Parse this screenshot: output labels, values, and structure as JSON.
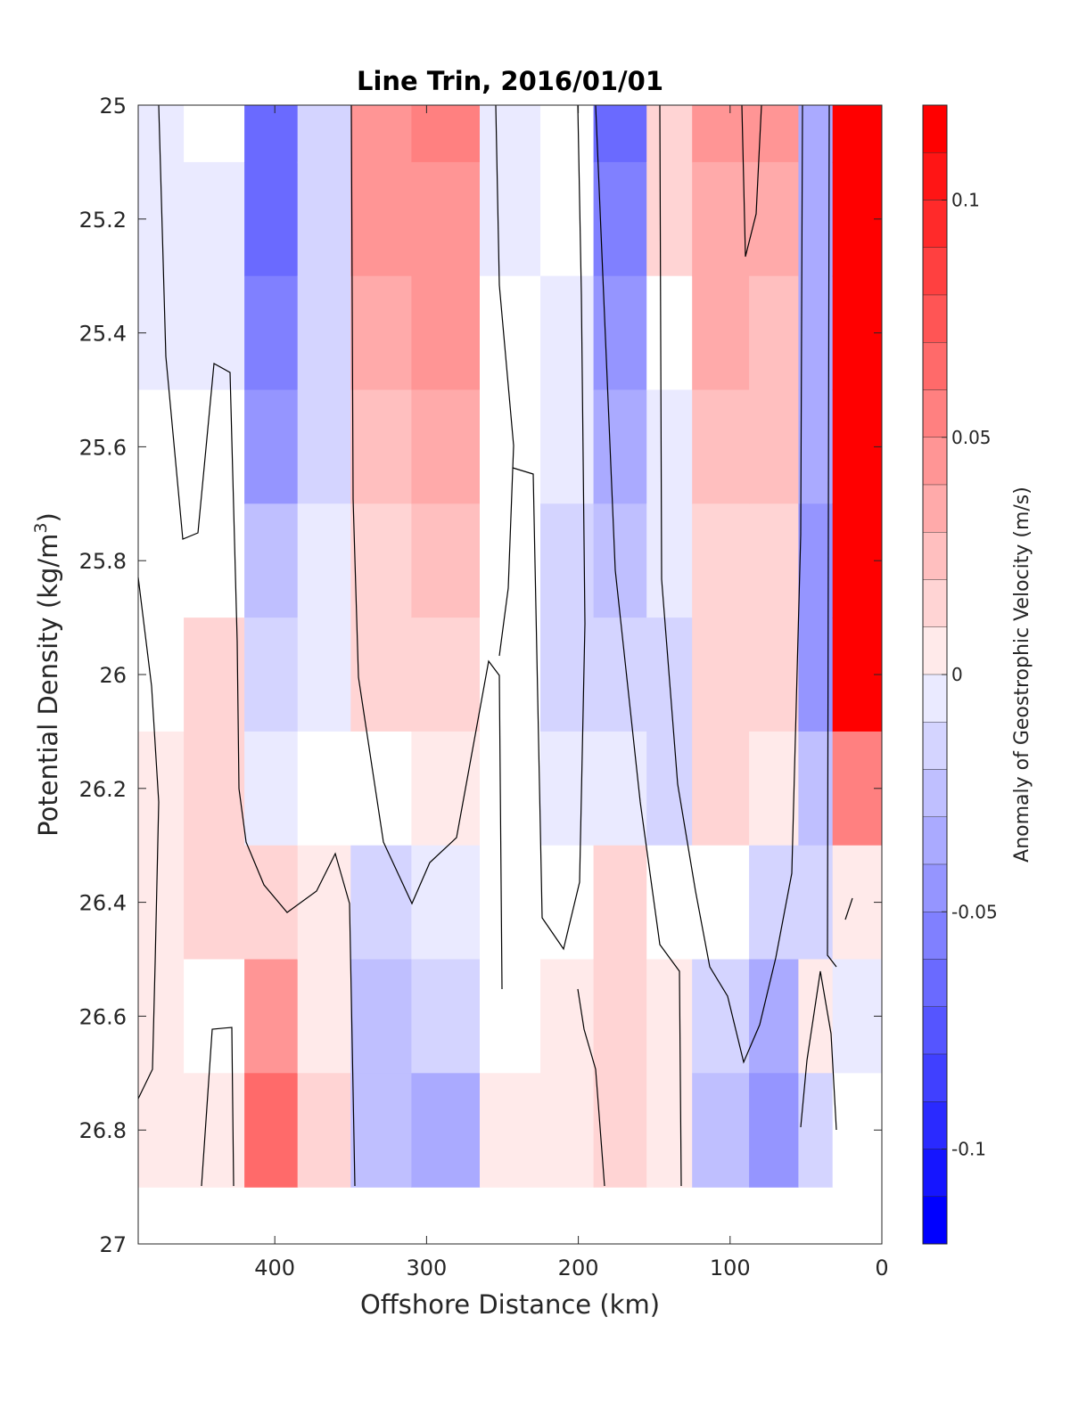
{
  "chart_data": {
    "type": "heatmap",
    "title": "Line Trin, 2016/01/01",
    "xlabel": "Offshore Distance (km)",
    "ylabel_main": "Potential Density (kg/m",
    "ylabel_sup": "3",
    "ylabel_close": ")",
    "colorbar_label": "Anomaly of Geostrophic Velocity (m/s)",
    "x_range": [
      490,
      0
    ],
    "x_reversed": true,
    "y_range": [
      25,
      27
    ],
    "y_reversed": true,
    "x_ticks": [
      400,
      300,
      200,
      100,
      0
    ],
    "x_tick_labels": [
      "400",
      "300",
      "200",
      "100",
      "0"
    ],
    "y_ticks": [
      25,
      25.2,
      25.4,
      25.6,
      25.8,
      26,
      26.2,
      26.4,
      26.6,
      26.8,
      27
    ],
    "y_tick_labels": [
      "25",
      "25.2",
      "25.4",
      "25.6",
      "25.8",
      "26",
      "26.2",
      "26.4",
      "26.6",
      "26.8",
      "27"
    ],
    "color_range": [
      -0.12,
      0.12
    ],
    "color_step": 0.01,
    "colorbar_ticks": [
      0.1,
      0.05,
      0,
      -0.05,
      -0.1
    ],
    "colorbar_tick_labels": [
      "0.1",
      "0.05",
      "0",
      "-0.05",
      "-0.1"
    ],
    "colormap": "blue-white-red",
    "colors": {
      "max": "#ff0000",
      "zero": "#ffffff",
      "min": "#0000ff",
      "contour": "#000000"
    },
    "data_y_extent": [
      25,
      26.9
    ],
    "zero_contour": "shown as thin black lines",
    "grid": false,
    "columns": [
      {
        "x": 480,
        "values": [
          -0.01,
          -0.01,
          -0.01,
          0,
          0,
          0,
          0.01,
          0.01,
          0.01,
          0.01
        ]
      },
      {
        "x": 440,
        "values": [
          0,
          -0.01,
          -0.01,
          0,
          0,
          0.02,
          0.02,
          0.02,
          0,
          0.01
        ]
      },
      {
        "x": 400,
        "values": [
          -0.07,
          -0.07,
          -0.06,
          -0.05,
          -0.03,
          -0.02,
          -0.01,
          0.02,
          0.05,
          0.07
        ]
      },
      {
        "x": 370,
        "values": [
          -0.02,
          -0.02,
          -0.02,
          -0.02,
          -0.01,
          -0.01,
          0,
          0.01,
          0.01,
          0.02
        ]
      },
      {
        "x": 330,
        "values": [
          0.05,
          0.05,
          0.04,
          0.03,
          0.02,
          0.02,
          0,
          -0.02,
          -0.03,
          -0.03
        ]
      },
      {
        "x": 290,
        "values": [
          0.06,
          0.05,
          0.05,
          0.04,
          0.03,
          0.02,
          0.01,
          -0.01,
          -0.02,
          -0.04
        ]
      },
      {
        "x": 240,
        "values": [
          -0.01,
          -0.01,
          0,
          0,
          0,
          0,
          0,
          0,
          0,
          0.01
        ]
      },
      {
        "x": 210,
        "values": [
          0,
          0,
          -0.01,
          -0.01,
          -0.02,
          -0.02,
          -0.01,
          0,
          0.01,
          0.01
        ]
      },
      {
        "x": 170,
        "values": [
          -0.07,
          -0.06,
          -0.05,
          -0.04,
          -0.03,
          -0.02,
          -0.01,
          0.02,
          0.02,
          0.02
        ]
      },
      {
        "x": 140,
        "values": [
          0.02,
          0.02,
          0,
          -0.01,
          -0.01,
          -0.02,
          -0.02,
          0,
          0.01,
          0.01
        ]
      },
      {
        "x": 110,
        "values": [
          0.05,
          0.04,
          0.04,
          0.03,
          0.02,
          0.02,
          0.02,
          0,
          -0.02,
          -0.03
        ]
      },
      {
        "x": 65,
        "values": [
          0.05,
          0.04,
          0.03,
          0.03,
          0.02,
          0.02,
          0.01,
          -0.02,
          -0.04,
          -0.05
        ]
      },
      {
        "x": 45,
        "values": [
          -0.04,
          -0.04,
          -0.04,
          -0.04,
          -0.05,
          -0.05,
          -0.03,
          -0.02,
          0.01,
          -0.02
        ]
      },
      {
        "x": 20,
        "values": [
          0.12,
          0.12,
          0.12,
          0.12,
          0.12,
          0.12,
          0.06,
          0.01,
          -0.01,
          0
        ]
      }
    ],
    "column_y_levels": [
      25.0,
      25.2,
      25.4,
      25.6,
      25.8,
      26.0,
      26.2,
      26.4,
      26.6,
      26.8
    ]
  }
}
